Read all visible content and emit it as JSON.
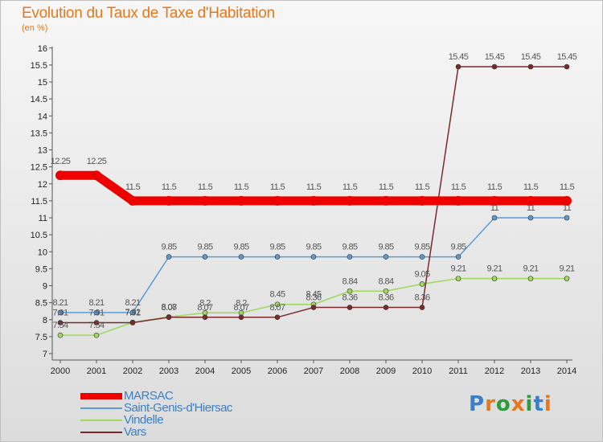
{
  "title": "Evolution du Taux de Taxe d'Habitation",
  "unit": "(en %)",
  "logo": {
    "letters": [
      "P",
      "r",
      "o",
      "x",
      "i",
      "t",
      "i"
    ],
    "colors": [
      "#3a7fc8",
      "#e8771b",
      "#2e9a3d",
      "#e8771b",
      "#2e9a3d",
      "#3a7fc8",
      "#e8771b"
    ]
  },
  "chart_data": {
    "type": "line",
    "title": "Evolution du Taux de Taxe d'Habitation",
    "ylabel": "(en %)",
    "x": [
      "2000",
      "2001",
      "2002",
      "2003",
      "2004",
      "2005",
      "2006",
      "2007",
      "2008",
      "2009",
      "2010",
      "2011",
      "2012",
      "2013",
      "2014"
    ],
    "ylim": [
      7,
      16
    ],
    "yticks": [
      "7",
      "7.5",
      "8",
      "8.5",
      "9",
      "9.5",
      "10",
      "10.5",
      "11",
      "11.5",
      "12",
      "12.5",
      "13",
      "13.5",
      "14",
      "14.5",
      "15",
      "15.5",
      "16"
    ],
    "grid": false,
    "legend_position": "bottom-left",
    "series": [
      {
        "name": "MARSAC",
        "color": "#ee0000",
        "values": [
          12.25,
          12.25,
          11.5,
          11.5,
          11.5,
          11.5,
          11.5,
          11.5,
          11.5,
          11.5,
          11.5,
          11.5,
          11.5,
          11.5,
          11.5
        ],
        "labels": [
          "12.25",
          "12.25",
          "11.5",
          "11.5",
          "11.5",
          "11.5",
          "11.5",
          "11.5",
          "11.5",
          "11.5",
          "11.5",
          "11.5",
          "11.5",
          "11.5",
          "11.5"
        ]
      },
      {
        "name": "Saint-Genis-d'Hiersac",
        "color": "#5b9bd5",
        "values": [
          8.21,
          8.21,
          8.21,
          9.85,
          9.85,
          9.85,
          9.85,
          9.85,
          9.85,
          9.85,
          9.85,
          9.85,
          11,
          11,
          11
        ],
        "labels": [
          "8.21",
          "8.21",
          "8.21",
          "9.85",
          "9.85",
          "9.85",
          "9.85",
          "9.85",
          "9.85",
          "9.85",
          "9.85",
          "9.85",
          "11",
          "11",
          "11"
        ]
      },
      {
        "name": "Vindelle",
        "color": "#9ed95b",
        "values": [
          7.54,
          7.54,
          7.92,
          8.08,
          8.2,
          8.2,
          8.45,
          8.45,
          8.84,
          8.84,
          9.05,
          9.21,
          9.21,
          9.21,
          9.21
        ],
        "labels": [
          "7.54",
          "7.54",
          "7.92",
          "8.08",
          "8.2",
          "8.2",
          "8.45",
          "8.45",
          "8.84",
          "8.84",
          "9.05",
          "9.21",
          "9.21",
          "9.21",
          "9.21"
        ]
      },
      {
        "name": "Vars",
        "color": "#7a2a2a",
        "values": [
          7.91,
          7.91,
          7.91,
          8.07,
          8.07,
          8.07,
          8.07,
          8.36,
          8.36,
          8.36,
          8.36,
          15.45,
          15.45,
          15.45,
          15.45
        ],
        "labels": [
          "7.91",
          "7.91",
          "7.91",
          "8.07",
          "8.07",
          "8.07",
          "8.07",
          "8.36",
          "8.36",
          "8.36",
          "8.36",
          "15.45",
          "15.45",
          "15.45",
          "15.45"
        ]
      }
    ]
  }
}
